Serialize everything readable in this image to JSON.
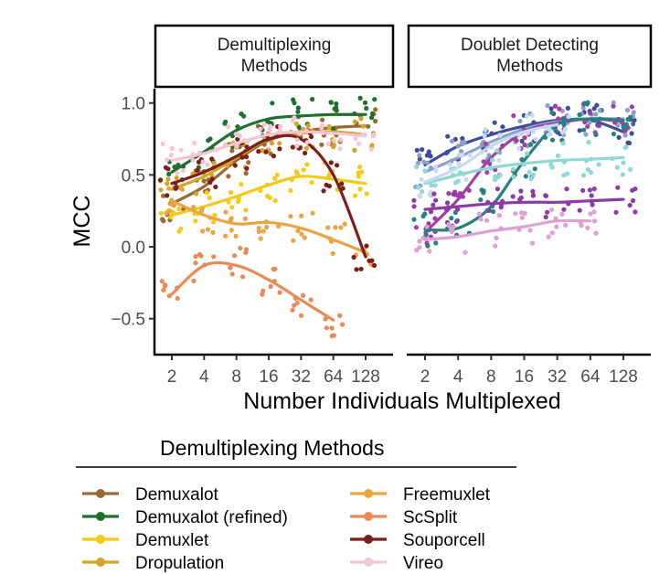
{
  "chart_data": {
    "type": "line",
    "ylabel": "MCC",
    "xlabel": "Number Individuals Multiplexed",
    "x_scale": "log2",
    "x": [
      2,
      4,
      8,
      16,
      32,
      64,
      128
    ],
    "ylim": [
      -0.75,
      1.1
    ],
    "yticks": [
      1.0,
      0.5,
      0.0,
      -0.5
    ],
    "ytick_labels": [
      "1.0",
      "0.5",
      "0.0",
      "−0.5"
    ],
    "xtick_labels": [
      "2",
      "4",
      "8",
      "16",
      "32",
      "64",
      "128"
    ],
    "grid": false,
    "legend": {
      "title": "Demultiplexing Methods",
      "placement": "bottom"
    },
    "panels": [
      {
        "title_lines": [
          "Demultiplexing",
          "Methods"
        ],
        "series": [
          {
            "name": "Demuxalot",
            "color": "#9a6a34",
            "x": [
              2,
              4,
              8,
              16,
              32,
              64,
              128
            ],
            "values": [
              0.3,
              0.42,
              0.6,
              0.74,
              0.8,
              0.83,
              0.84
            ]
          },
          {
            "name": "Demuxalot (refined)",
            "color": "#1f6f2e",
            "x": [
              2,
              4,
              8,
              16,
              32,
              64,
              128
            ],
            "values": [
              0.52,
              0.66,
              0.81,
              0.89,
              0.91,
              0.92,
              0.92
            ]
          },
          {
            "name": "Demuxlet",
            "color": "#f3cb17",
            "x": [
              2,
              4,
              8,
              16,
              32,
              64,
              128
            ],
            "values": [
              0.22,
              0.28,
              0.35,
              0.43,
              0.49,
              0.47,
              0.44
            ]
          },
          {
            "name": "Dropulation",
            "color": "#d3a528",
            "x": [
              2,
              4,
              8,
              16,
              32,
              64,
              128
            ],
            "values": [
              0.4,
              0.49,
              0.62,
              0.75,
              0.79,
              0.8,
              0.78
            ]
          },
          {
            "name": "Freemuxlet",
            "color": "#eaa444",
            "x": [
              2,
              4,
              8,
              16,
              32,
              64,
              128
            ],
            "values": [
              0.32,
              0.22,
              0.16,
              0.17,
              0.13,
              0.05,
              -0.04
            ]
          },
          {
            "name": "ScSplit",
            "color": "#e88a58",
            "x": [
              2,
              4,
              8,
              16,
              32,
              64
            ],
            "values": [
              -0.33,
              -0.13,
              -0.13,
              -0.23,
              -0.37,
              -0.51
            ]
          },
          {
            "name": "Souporcell",
            "color": "#7b1f1a",
            "x": [
              2,
              4,
              8,
              16,
              32,
              64,
              128
            ],
            "values": [
              0.44,
              0.52,
              0.63,
              0.75,
              0.75,
              0.5,
              -0.07
            ]
          },
          {
            "name": "Vireo",
            "color": "#f6c5d5",
            "x": [
              2,
              4,
              8,
              16,
              32,
              64,
              128
            ],
            "values": [
              0.6,
              0.65,
              0.72,
              0.78,
              0.8,
              0.79,
              0.77
            ]
          }
        ]
      },
      {
        "title_lines": [
          "Doublet Detecting",
          "Methods"
        ],
        "series": [
          {
            "color": "#3f4c99",
            "x": [
              2,
              4,
              8,
              16,
              32,
              64,
              128
            ],
            "values": [
              0.57,
              0.7,
              0.78,
              0.84,
              0.88,
              0.88,
              0.8
            ]
          },
          {
            "color": "#8da0cb",
            "x": [
              2,
              4,
              8,
              16,
              32,
              64,
              128
            ],
            "values": [
              0.52,
              0.62,
              0.73,
              0.82,
              0.87,
              0.89,
              0.89
            ]
          },
          {
            "color": "#a23fa7",
            "x": [
              2,
              4,
              8,
              16,
              32,
              64,
              128
            ],
            "values": [
              0.1,
              0.33,
              0.62,
              0.8,
              0.86,
              0.89,
              0.87
            ]
          },
          {
            "color": "#2a8080",
            "x": [
              2,
              4,
              8,
              16,
              32,
              64,
              128
            ],
            "values": [
              0.12,
              0.13,
              0.28,
              0.6,
              0.85,
              0.89,
              0.88
            ]
          },
          {
            "color": "#8fd8d8",
            "x": [
              2,
              4,
              8,
              16,
              32,
              64,
              128
            ],
            "values": [
              0.44,
              0.5,
              0.55,
              0.58,
              0.6,
              0.61,
              0.62
            ]
          },
          {
            "color": "#c8daf0",
            "x": [
              2,
              4,
              8,
              16,
              32
            ],
            "values": [
              0.45,
              0.55,
              0.7,
              0.8,
              0.85
            ]
          },
          {
            "color": "#8e3aa6",
            "x": [
              2,
              4,
              8,
              16,
              32,
              64,
              128
            ],
            "values": [
              0.26,
              0.28,
              0.3,
              0.31,
              0.31,
              0.32,
              0.33
            ]
          },
          {
            "color": "#dfa0d4",
            "x": [
              2,
              4,
              8,
              16,
              32,
              64
            ],
            "values": [
              0.05,
              0.07,
              0.11,
              0.14,
              0.18,
              0.18
            ]
          }
        ]
      }
    ]
  }
}
